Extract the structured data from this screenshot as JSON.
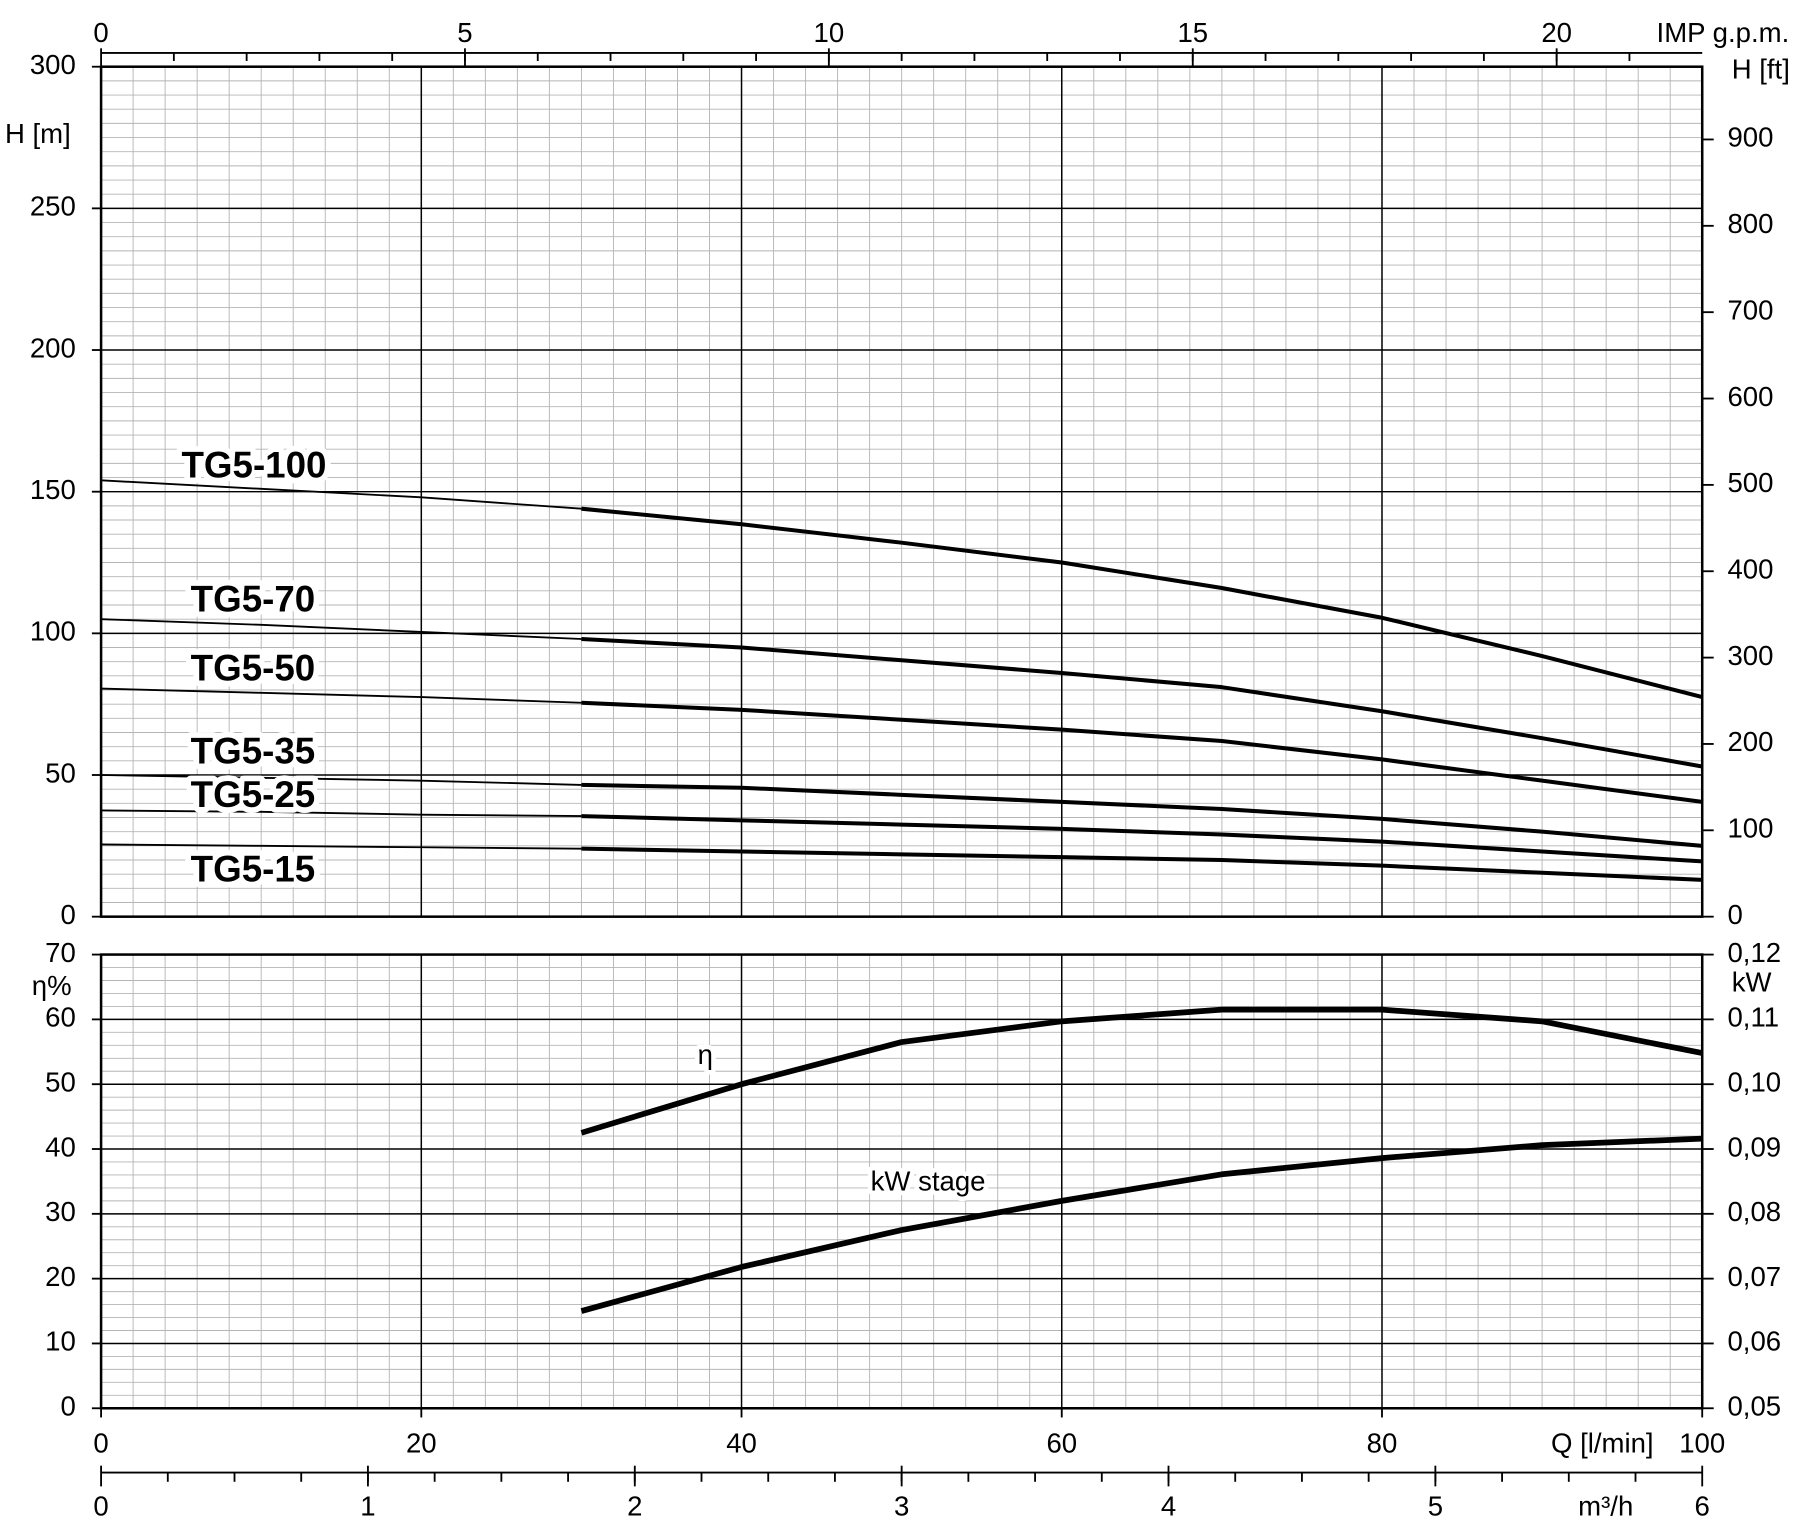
{
  "chart_data": [
    {
      "type": "line",
      "ylabel": "H [m]",
      "y2label": "H [ft]",
      "x2label": "IMP g.p.m.",
      "x": [
        0,
        10,
        20,
        30,
        40,
        50,
        60,
        70,
        80,
        90,
        100
      ],
      "xlim": [
        0,
        100
      ],
      "xticks": [
        0,
        20,
        40,
        60,
        80,
        100
      ],
      "ylim": [
        0,
        300
      ],
      "yticks": [
        0,
        50,
        100,
        150,
        200,
        250,
        300
      ],
      "y2lim": [
        0,
        984.25
      ],
      "y2ticks": [
        0,
        100,
        200,
        300,
        400,
        500,
        600,
        700,
        800,
        900
      ],
      "x2lim": [
        0,
        22
      ],
      "x2ticks": [
        0,
        5,
        10,
        15,
        20
      ],
      "x2_minor_step": 1,
      "grid": true,
      "minor_grid": {
        "x": 2,
        "y": 5
      },
      "operating_range": [
        30,
        100
      ],
      "series": [
        {
          "name": "TG5-100",
          "color": "#000000",
          "values": [
            154,
            151,
            148,
            144,
            138.5,
            132,
            125,
            116,
            105.5,
            92,
            77.5
          ]
        },
        {
          "name": "TG5-70",
          "color": "#000000",
          "values": [
            105,
            103,
            100.5,
            98,
            95,
            90.5,
            86,
            81,
            72.5,
            63,
            53
          ]
        },
        {
          "name": "TG5-50",
          "color": "#000000",
          "values": [
            80.5,
            79,
            77.5,
            75.5,
            73,
            69.5,
            66,
            62,
            55.5,
            48,
            40.5
          ]
        },
        {
          "name": "TG5-35",
          "color": "#000000",
          "values": [
            50,
            49,
            48,
            46.5,
            45.5,
            43,
            40.5,
            38,
            34.5,
            30,
            25
          ]
        },
        {
          "name": "TG5-25",
          "color": "#000000",
          "values": [
            37.5,
            37,
            36,
            35.5,
            34,
            32.5,
            31,
            29,
            26.5,
            23,
            19.5
          ]
        },
        {
          "name": "TG5-15",
          "color": "#000000",
          "values": [
            25.5,
            25,
            24.5,
            24,
            23,
            22,
            21,
            20,
            18,
            15.5,
            13
          ]
        }
      ]
    },
    {
      "type": "line",
      "ylabel": "η%",
      "y2label": "kW",
      "xlabel": "Q [l/min]",
      "x3label": "m³/h",
      "x": [
        30,
        40,
        50,
        60,
        70,
        80,
        90,
        100
      ],
      "xlim": [
        0,
        100
      ],
      "xticks": [
        0,
        20,
        40,
        60,
        80,
        100
      ],
      "ylim": [
        0,
        70
      ],
      "yticks": [
        0,
        10,
        20,
        30,
        40,
        50,
        60,
        70
      ],
      "y2lim": [
        0.05,
        0.12
      ],
      "y2ticks": [
        {
          "value": 0.05,
          "label": "0,05"
        },
        {
          "value": 0.06,
          "label": "0,06"
        },
        {
          "value": 0.07,
          "label": "0,07"
        },
        {
          "value": 0.08,
          "label": "0,08"
        },
        {
          "value": 0.09,
          "label": "0,09"
        },
        {
          "value": 0.1,
          "label": "0,10"
        },
        {
          "value": 0.11,
          "label": "0,11"
        },
        {
          "value": 0.12,
          "label": "0,12"
        }
      ],
      "x3lim": [
        0,
        6
      ],
      "x3ticks": [
        0,
        1,
        2,
        3,
        4,
        5,
        6
      ],
      "x3_minor_step": 0.25,
      "grid": true,
      "minor_grid": {
        "x": 2,
        "y": 2
      },
      "series": [
        {
          "name": "η",
          "color": "#000000",
          "values": [
            42.5,
            50,
            56.5,
            59.7,
            61.5,
            61.5,
            59.7,
            54.8
          ]
        },
        {
          "name": "kW stage",
          "color": "#000000",
          "axis": "y2",
          "values": [
            0.065,
            0.0718,
            0.0775,
            0.082,
            0.0861,
            0.0886,
            0.0906,
            0.0916
          ]
        }
      ]
    }
  ]
}
